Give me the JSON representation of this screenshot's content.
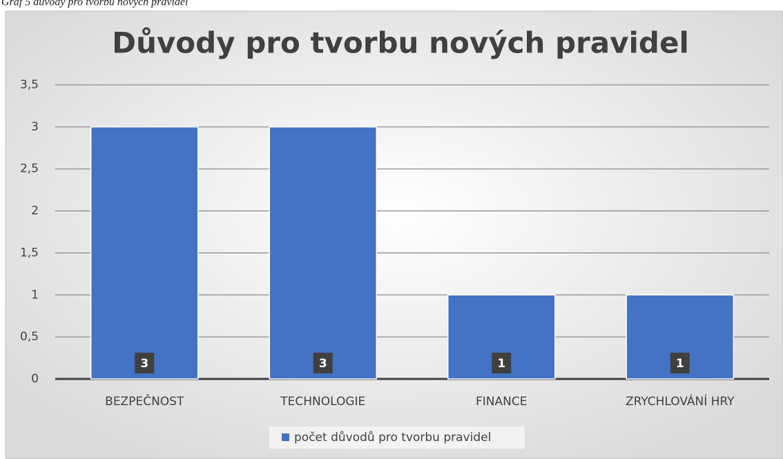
{
  "caption": "Graf 5 důvody pro tvorbu nových pravidel",
  "chart_data": {
    "type": "bar",
    "title": "Důvody pro tvorbu nových pravidel",
    "categories": [
      "BEZPEČNOST",
      "TECHNOLOGIE",
      "FINANCE",
      "ZRYCHLOVÁNÍ HRY"
    ],
    "series": [
      {
        "name": "počet důvodů pro tvorbu pravidel",
        "color": "#4472c4",
        "values": [
          3,
          3,
          1,
          1
        ]
      }
    ],
    "ylim": [
      0,
      3.5
    ],
    "yticks": [
      0,
      {
        "value": 0.5,
        "label": "0,5"
      },
      1,
      {
        "value": 1.5,
        "label": "1,5"
      },
      2,
      {
        "value": 2.5,
        "label": "2,5"
      },
      3,
      {
        "value": 3.5,
        "label": "3,5"
      }
    ],
    "grid": true,
    "legend": "bottom"
  }
}
